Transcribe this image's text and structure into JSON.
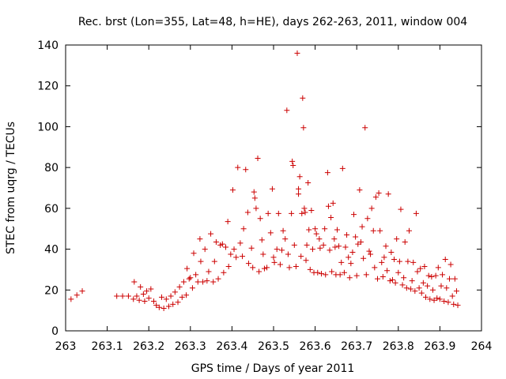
{
  "chart_data": {
    "type": "scatter",
    "title": "Rec. brst (Lon=355, Lat=48, h=HE), days 262-263, 2011, window 004",
    "xlabel": "GPS time / Days of year 2011",
    "ylabel": "STEC from uqrg / TECUs",
    "xlim": [
      263,
      264
    ],
    "ylim": [
      0,
      140
    ],
    "xticks": [
      263,
      263.1,
      263.2,
      263.3,
      263.4,
      263.5,
      263.6,
      263.7,
      263.8,
      263.9,
      264
    ],
    "xtick_labels": [
      "263",
      "263.1",
      "263.2",
      "263.3",
      "263.4",
      "263.5",
      "263.6",
      "263.7",
      "263.8",
      "263.9",
      "264"
    ],
    "yticks": [
      0,
      20,
      40,
      60,
      80,
      100,
      120,
      140
    ],
    "ytick_labels": [
      "0",
      "20",
      "40",
      "60",
      "80",
      "100",
      "120",
      "140"
    ],
    "grid": false,
    "marker": "+",
    "series": [
      {
        "name": "STEC",
        "color": "#cc0000",
        "points": [
          [
            263.013,
            15.5
          ],
          [
            263.027,
            17.5
          ],
          [
            263.04,
            19.5
          ],
          [
            263.123,
            17.0
          ],
          [
            263.137,
            17.0
          ],
          [
            263.151,
            17.0
          ],
          [
            263.163,
            15.5
          ],
          [
            263.165,
            24.0
          ],
          [
            263.171,
            17.0
          ],
          [
            263.177,
            15.0
          ],
          [
            263.18,
            21.5
          ],
          [
            263.187,
            18.0
          ],
          [
            263.19,
            14.5
          ],
          [
            263.195,
            19.5
          ],
          [
            263.2,
            16.0
          ],
          [
            263.205,
            20.5
          ],
          [
            263.212,
            14.5
          ],
          [
            263.218,
            12.5
          ],
          [
            263.225,
            11.5
          ],
          [
            263.231,
            16.5
          ],
          [
            263.236,
            11.0
          ],
          [
            263.242,
            15.5
          ],
          [
            263.248,
            12.0
          ],
          [
            263.253,
            17.0
          ],
          [
            263.258,
            13.0
          ],
          [
            263.263,
            19.0
          ],
          [
            263.27,
            14.0
          ],
          [
            263.274,
            21.5
          ],
          [
            263.28,
            16.5
          ],
          [
            263.284,
            24.0
          ],
          [
            263.29,
            17.5
          ],
          [
            263.292,
            30.5
          ],
          [
            263.297,
            25.5
          ],
          [
            263.3,
            26.0
          ],
          [
            263.305,
            21.0
          ],
          [
            263.308,
            38.0
          ],
          [
            263.313,
            27.5
          ],
          [
            263.318,
            24.0
          ],
          [
            263.323,
            45.0
          ],
          [
            263.325,
            34.0
          ],
          [
            263.33,
            24.0
          ],
          [
            263.335,
            40.0
          ],
          [
            263.34,
            24.5
          ],
          [
            263.344,
            29.0
          ],
          [
            263.349,
            47.5
          ],
          [
            263.355,
            24.0
          ],
          [
            263.358,
            34.0
          ],
          [
            263.362,
            43.5
          ],
          [
            263.367,
            25.5
          ],
          [
            263.372,
            42.0
          ],
          [
            263.377,
            42.5
          ],
          [
            263.38,
            28.5
          ],
          [
            263.385,
            41.0
          ],
          [
            263.39,
            53.5
          ],
          [
            263.392,
            31.5
          ],
          [
            263.397,
            37.5
          ],
          [
            263.402,
            69.0
          ],
          [
            263.405,
            40.0
          ],
          [
            263.41,
            36.0
          ],
          [
            263.414,
            80.0
          ],
          [
            263.42,
            43.0
          ],
          [
            263.425,
            36.5
          ],
          [
            263.428,
            50.0
          ],
          [
            263.433,
            79.0
          ],
          [
            263.438,
            58.0
          ],
          [
            263.44,
            33.0
          ],
          [
            263.447,
            40.5
          ],
          [
            263.45,
            31.0
          ],
          [
            263.453,
            68.0
          ],
          [
            263.455,
            65.0
          ],
          [
            263.458,
            60.0
          ],
          [
            263.462,
            84.5
          ],
          [
            263.465,
            29.0
          ],
          [
            263.468,
            55.0
          ],
          [
            263.472,
            44.5
          ],
          [
            263.475,
            37.5
          ],
          [
            263.478,
            30.5
          ],
          [
            263.484,
            31.0
          ],
          [
            263.487,
            57.5
          ],
          [
            263.493,
            48.0
          ],
          [
            263.497,
            69.5
          ],
          [
            263.5,
            36.0
          ],
          [
            263.502,
            33.5
          ],
          [
            263.508,
            40.0
          ],
          [
            263.512,
            57.5
          ],
          [
            263.516,
            32.5
          ],
          [
            263.52,
            39.5
          ],
          [
            263.523,
            49.0
          ],
          [
            263.528,
            45.0
          ],
          [
            263.532,
            108.0
          ],
          [
            263.535,
            37.5
          ],
          [
            263.538,
            31.0
          ],
          [
            263.543,
            57.5
          ],
          [
            263.545,
            83.0
          ],
          [
            263.547,
            81.0
          ],
          [
            263.55,
            42.0
          ],
          [
            263.554,
            31.5
          ],
          [
            263.557,
            136.0
          ],
          [
            263.56,
            69.5
          ],
          [
            263.56,
            67.0
          ],
          [
            263.563,
            75.5
          ],
          [
            263.566,
            36.5
          ],
          [
            263.568,
            57.5
          ],
          [
            263.57,
            114.0
          ],
          [
            263.572,
            99.5
          ],
          [
            263.574,
            60.0
          ],
          [
            263.576,
            58.0
          ],
          [
            263.578,
            34.5
          ],
          [
            263.58,
            42.0
          ],
          [
            263.583,
            72.5
          ],
          [
            263.585,
            49.5
          ],
          [
            263.588,
            30.0
          ],
          [
            263.591,
            59.0
          ],
          [
            263.594,
            40.0
          ],
          [
            263.597,
            28.5
          ],
          [
            263.6,
            50.0
          ],
          [
            263.603,
            47.5
          ],
          [
            263.606,
            28.5
          ],
          [
            263.61,
            45.0
          ],
          [
            263.612,
            40.5
          ],
          [
            263.615,
            28.0
          ],
          [
            263.62,
            42.0
          ],
          [
            263.623,
            50.0
          ],
          [
            263.625,
            27.5
          ],
          [
            263.63,
            77.5
          ],
          [
            263.632,
            61.0
          ],
          [
            263.635,
            39.5
          ],
          [
            263.638,
            55.5
          ],
          [
            263.64,
            29.0
          ],
          [
            263.643,
            62.5
          ],
          [
            263.646,
            45.0
          ],
          [
            263.648,
            41.0
          ],
          [
            263.65,
            27.5
          ],
          [
            263.653,
            49.5
          ],
          [
            263.657,
            41.5
          ],
          [
            263.66,
            27.5
          ],
          [
            263.663,
            33.5
          ],
          [
            263.666,
            79.5
          ],
          [
            263.67,
            28.5
          ],
          [
            263.673,
            41.0
          ],
          [
            263.676,
            47.0
          ],
          [
            263.68,
            36.0
          ],
          [
            263.683,
            26.0
          ],
          [
            263.686,
            33.0
          ],
          [
            263.69,
            38.5
          ],
          [
            263.693,
            57.0
          ],
          [
            263.697,
            46.0
          ],
          [
            263.7,
            27.0
          ],
          [
            263.703,
            42.5
          ],
          [
            263.707,
            69.0
          ],
          [
            263.71,
            43.5
          ],
          [
            263.713,
            51.0
          ],
          [
            263.716,
            35.5
          ],
          [
            263.72,
            99.5
          ],
          [
            263.723,
            27.5
          ],
          [
            263.726,
            55.0
          ],
          [
            263.73,
            39.0
          ],
          [
            263.733,
            37.5
          ],
          [
            263.736,
            60.0
          ],
          [
            263.74,
            49.0
          ],
          [
            263.743,
            31.0
          ],
          [
            263.746,
            65.5
          ],
          [
            263.75,
            25.5
          ],
          [
            263.753,
            67.5
          ],
          [
            263.756,
            49.0
          ],
          [
            263.76,
            33.5
          ],
          [
            263.763,
            26.5
          ],
          [
            263.766,
            36.0
          ],
          [
            263.77,
            41.5
          ],
          [
            263.773,
            29.5
          ],
          [
            263.776,
            67.0
          ],
          [
            263.78,
            24.5
          ],
          [
            263.783,
            38.5
          ],
          [
            263.786,
            25.0
          ],
          [
            263.79,
            35.0
          ],
          [
            263.793,
            23.5
          ],
          [
            263.796,
            45.0
          ],
          [
            263.8,
            28.5
          ],
          [
            263.803,
            34.0
          ],
          [
            263.806,
            59.5
          ],
          [
            263.81,
            22.5
          ],
          [
            263.813,
            26.0
          ],
          [
            263.816,
            43.5
          ],
          [
            263.82,
            21.0
          ],
          [
            263.823,
            34.0
          ],
          [
            263.826,
            49.0
          ],
          [
            263.83,
            20.5
          ],
          [
            263.833,
            24.5
          ],
          [
            263.836,
            33.5
          ],
          [
            263.84,
            19.5
          ],
          [
            263.843,
            57.5
          ],
          [
            263.846,
            29.0
          ],
          [
            263.85,
            21.0
          ],
          [
            263.853,
            30.5
          ],
          [
            263.856,
            18.5
          ],
          [
            263.86,
            23.5
          ],
          [
            263.863,
            31.5
          ],
          [
            263.866,
            16.5
          ],
          [
            263.87,
            22.0
          ],
          [
            263.873,
            27.0
          ],
          [
            263.876,
            15.5
          ],
          [
            263.88,
            26.5
          ],
          [
            263.883,
            20.0
          ],
          [
            263.886,
            15.0
          ],
          [
            263.89,
            27.0
          ],
          [
            263.893,
            16.0
          ],
          [
            263.896,
            31.0
          ],
          [
            263.9,
            15.5
          ],
          [
            263.903,
            22.0
          ],
          [
            263.906,
            27.5
          ],
          [
            263.91,
            14.5
          ],
          [
            263.913,
            35.0
          ],
          [
            263.916,
            21.0
          ],
          [
            263.92,
            14.0
          ],
          [
            263.923,
            25.5
          ],
          [
            263.926,
            32.5
          ],
          [
            263.93,
            17.0
          ],
          [
            263.933,
            13.0
          ],
          [
            263.936,
            25.5
          ],
          [
            263.94,
            19.5
          ],
          [
            263.943,
            12.5
          ]
        ]
      }
    ]
  }
}
